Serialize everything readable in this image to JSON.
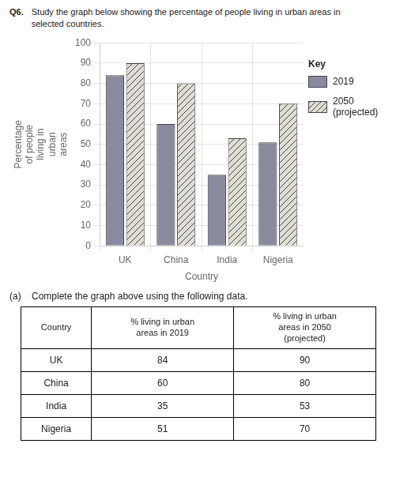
{
  "chart_data": {
    "type": "bar",
    "title": "Q6.",
    "subtitle": "Study the graph below showing the percentage of people living in urban areas in\nselected countries.",
    "categories": [
      "UK",
      "China",
      "India",
      "Nigeria"
    ],
    "series": [
      {
        "name": "2019",
        "color": "#8a8a9e",
        "values": [
          84,
          60,
          35,
          51
        ]
      },
      {
        "name": "2050\n(projected)",
        "color": "#e0ddd5",
        "values": [
          90,
          80,
          53,
          70
        ]
      }
    ],
    "xlabel": "Country",
    "ylabel": "Percentage\nof people\nliving in\nurban\nareas",
    "ylim": [
      0,
      100
    ],
    "yticks": [
      0,
      10,
      20,
      30,
      40,
      50,
      60,
      70,
      80,
      90,
      100
    ],
    "grid": true,
    "legend": "right",
    "legend_title": "Key",
    "annotations": [
      "(a)    Complete the graph above using the following data."
    ],
    "table": {
      "headers": [
        "Country",
        "% living in urban\nareas in 2019",
        "% living in urban\nareas in 2050\n(projected)"
      ],
      "rows": [
        [
          "UK",
          "84",
          "90"
        ],
        [
          "China",
          "60",
          "80"
        ],
        [
          "India",
          "35",
          "53"
        ],
        [
          "Nigeria",
          "51",
          "70"
        ]
      ]
    }
  }
}
